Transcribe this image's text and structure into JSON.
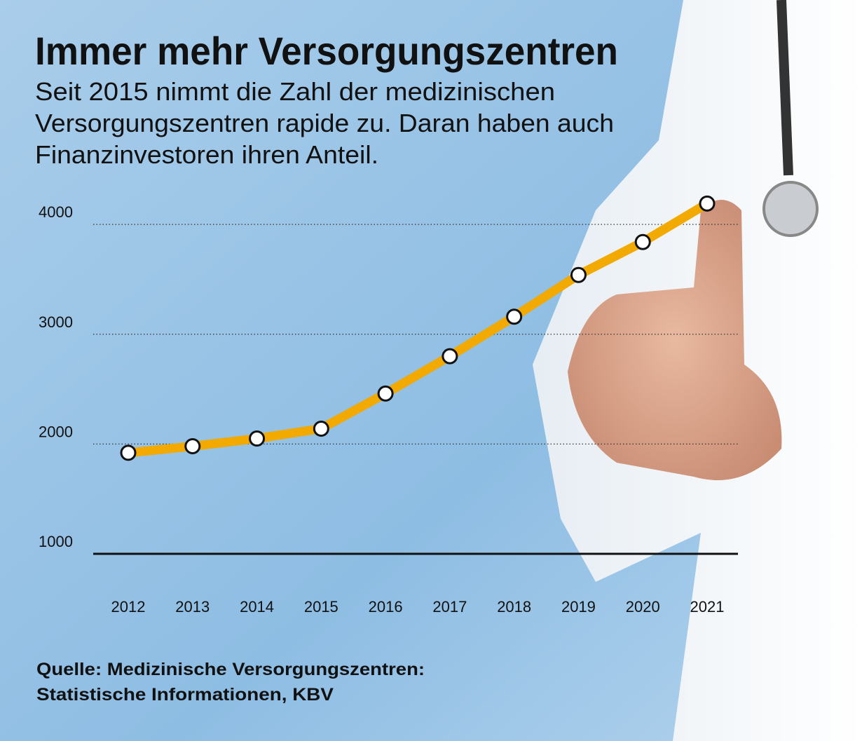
{
  "chart_data": {
    "type": "line",
    "title": "Immer mehr Versorgungszentren",
    "subtitle": [
      "Seit 2015 nimmt die Zahl der medizinischen",
      "Versorgungszentren rapide zu. Daran haben auch",
      "Finanzinvestoren ihren Anteil."
    ],
    "source": [
      "Quelle: Medizinische Versorgungszentren:",
      "Statistische Informationen, KBV"
    ],
    "categories": [
      "2012",
      "2013",
      "2014",
      "2015",
      "2016",
      "2017",
      "2018",
      "2019",
      "2020",
      "2021"
    ],
    "values": [
      1920,
      1980,
      2050,
      2140,
      2460,
      2800,
      3160,
      3540,
      3840,
      4190
    ],
    "color": "#f2a900",
    "ylim": [
      1000,
      4250
    ],
    "yticks": [
      1000,
      2000,
      3000,
      4000
    ],
    "grid": true
  }
}
